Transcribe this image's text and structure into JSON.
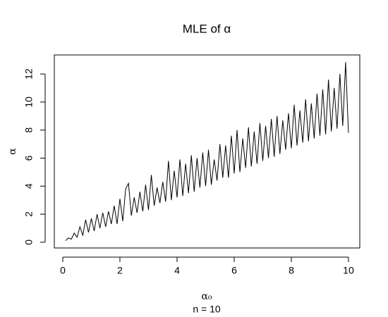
{
  "chart_data": {
    "type": "line",
    "title": "MLE of α",
    "xlabel": "α₀",
    "ylabel": "α",
    "subtitle": "n = 10",
    "x": [
      0.1,
      0.2,
      0.3,
      0.4,
      0.5,
      0.6,
      0.7,
      0.8,
      0.9,
      1.0,
      1.1,
      1.2,
      1.3,
      1.4,
      1.5,
      1.6,
      1.7,
      1.8,
      1.9,
      2.0,
      2.1,
      2.2,
      2.3,
      2.4,
      2.5,
      2.6,
      2.7,
      2.8,
      2.9,
      3.0,
      3.1,
      3.2,
      3.3,
      3.4,
      3.5,
      3.6,
      3.7,
      3.8,
      3.9,
      4.0,
      4.1,
      4.2,
      4.3,
      4.4,
      4.5,
      4.6,
      4.7,
      4.8,
      4.9,
      5.0,
      5.1,
      5.2,
      5.3,
      5.4,
      5.5,
      5.6,
      5.7,
      5.8,
      5.9,
      6.0,
      6.1,
      6.2,
      6.3,
      6.4,
      6.5,
      6.6,
      6.7,
      6.8,
      6.9,
      7.0,
      7.1,
      7.2,
      7.3,
      7.4,
      7.5,
      7.6,
      7.7,
      7.8,
      7.9,
      8.0,
      8.1,
      8.2,
      8.3,
      8.4,
      8.5,
      8.6,
      8.7,
      8.8,
      8.9,
      9.0,
      9.1,
      9.2,
      9.3,
      9.4,
      9.5,
      9.6,
      9.7,
      9.8,
      9.9,
      10.0
    ],
    "series": [
      {
        "color": "#000000",
        "values": [
          0.12,
          0.3,
          0.22,
          0.65,
          0.35,
          1.1,
          0.5,
          1.6,
          0.7,
          1.7,
          0.8,
          2.0,
          1.0,
          2.1,
          1.1,
          2.2,
          1.3,
          2.6,
          1.3,
          3.1,
          1.5,
          3.8,
          4.2,
          1.9,
          3.2,
          2.1,
          3.6,
          2.2,
          4.1,
          2.3,
          4.8,
          2.6,
          3.9,
          2.8,
          4.3,
          2.9,
          5.8,
          3.0,
          5.1,
          3.2,
          5.9,
          3.3,
          5.6,
          3.5,
          6.2,
          3.6,
          6.0,
          3.9,
          6.4,
          4.0,
          6.6,
          4.1,
          5.9,
          4.4,
          7.0,
          4.6,
          6.9,
          4.6,
          7.6,
          4.9,
          8.0,
          5.0,
          7.4,
          5.3,
          8.2,
          5.4,
          7.9,
          5.6,
          8.5,
          5.8,
          8.3,
          6.0,
          8.8,
          6.1,
          9.0,
          6.3,
          8.7,
          6.6,
          9.2,
          6.7,
          9.8,
          6.9,
          9.4,
          7.1,
          10.2,
          7.2,
          9.9,
          7.4,
          10.6,
          7.6,
          10.9,
          7.7,
          11.6,
          7.9,
          11.0,
          8.1,
          12.0,
          8.3,
          12.85,
          7.8
        ]
      }
    ],
    "xlim": [
      -0.296,
      10.396
    ],
    "ylim": [
      -0.41,
      13.36
    ],
    "xticks": [
      0,
      2,
      4,
      6,
      8,
      10
    ],
    "yticks": [
      0,
      2,
      4,
      6,
      8,
      10,
      12
    ]
  }
}
